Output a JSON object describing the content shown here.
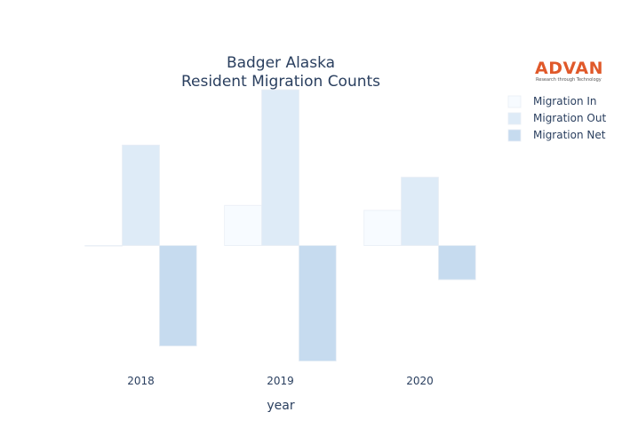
{
  "chart_data": {
    "type": "bar",
    "title": [
      "Badger Alaska",
      "Resident Migration Counts"
    ],
    "xlabel": "year",
    "ylabel": "",
    "categories": [
      "2018",
      "2019",
      "2020"
    ],
    "series": [
      {
        "name": "Migration In",
        "values": [
          0,
          4,
          3.5
        ],
        "color": "#f7fbff"
      },
      {
        "name": "Migration Out",
        "values": [
          10,
          15.5,
          6.8
        ],
        "color": "#deebf7"
      },
      {
        "name": "Migration Net",
        "values": [
          -10,
          -11.5,
          -3.4
        ],
        "color": "#c6dbef"
      }
    ],
    "ylim": [
      -11.8,
      15.6
    ],
    "grid": false,
    "legend_position": "top-right"
  },
  "logo": {
    "name": "ADVAN",
    "tagline": "Research through Technology"
  }
}
